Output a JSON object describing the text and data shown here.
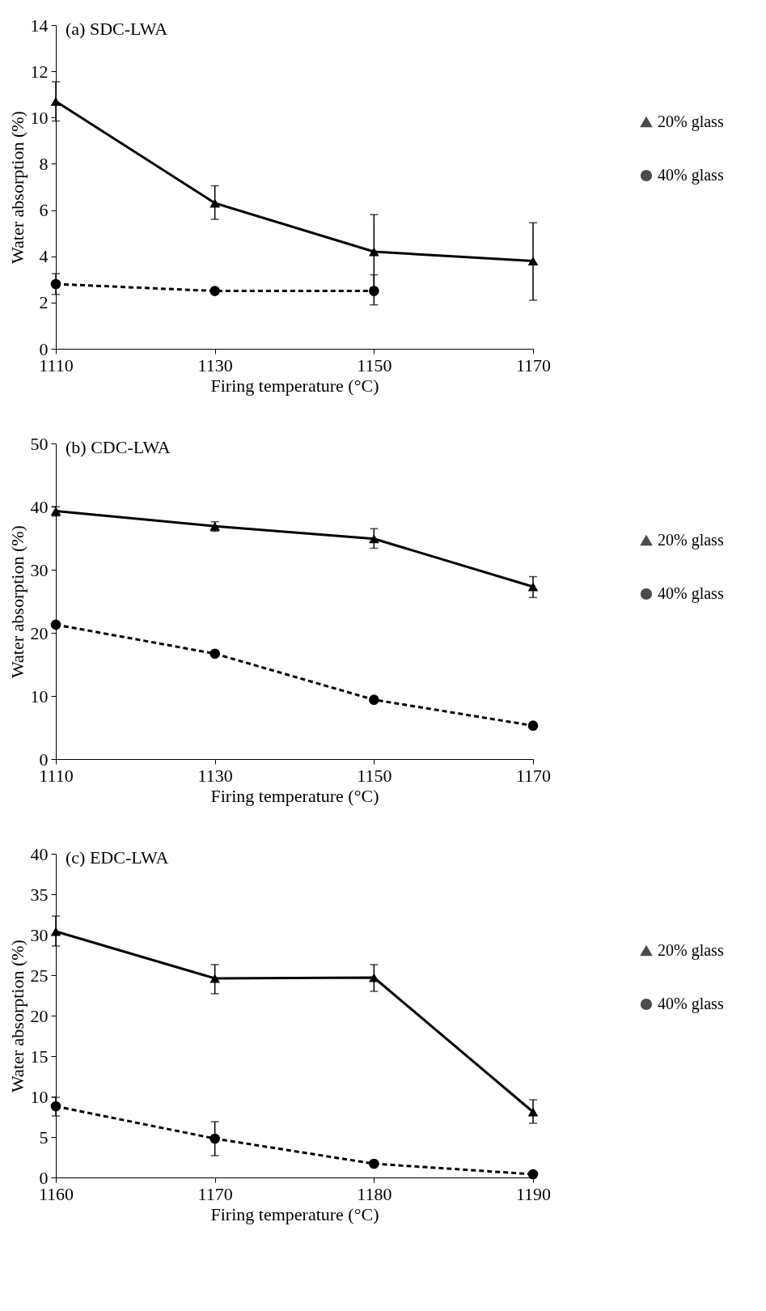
{
  "chart_data": [
    {
      "type": "line",
      "title": "(a) SDC-LWA",
      "xlabel": "Firing temperature (°C)",
      "ylabel": "Water absorption (%)",
      "x": [
        1110,
        1130,
        1150,
        1170
      ],
      "xlim": [
        1110,
        1170
      ],
      "xticks": [
        1110,
        1130,
        1150,
        1170
      ],
      "ylim": [
        0,
        14
      ],
      "yticks": [
        0,
        2,
        4,
        6,
        8,
        10,
        12,
        14
      ],
      "legend": "right",
      "grid": false,
      "series": [
        {
          "name": "20% glass",
          "color": "#000000",
          "marker": "triangle",
          "line_style": "solid",
          "values": [
            10.7,
            6.3,
            4.2,
            3.8
          ],
          "errors": [
            [
              9.85,
              11.55
            ],
            [
              5.6,
              7.05
            ],
            [
              2.65,
              5.8
            ],
            [
              2.1,
              5.45
            ]
          ]
        },
        {
          "name": "40% glass",
          "color": "#000000",
          "marker": "circle",
          "line_style": "dashed",
          "values": [
            2.8,
            2.5,
            2.5,
            null
          ],
          "errors": [
            [
              2.35,
              3.25
            ],
            null,
            [
              1.9,
              3.2
            ],
            null
          ]
        }
      ]
    },
    {
      "type": "line",
      "title": "(b) CDC-LWA",
      "xlabel": "Firing temperature (°C)",
      "ylabel": "Water absorption (%)",
      "x": [
        1110,
        1130,
        1150,
        1170
      ],
      "xlim": [
        1110,
        1170
      ],
      "xticks": [
        1110,
        1130,
        1150,
        1170
      ],
      "ylim": [
        0,
        50
      ],
      "yticks": [
        0,
        10,
        20,
        30,
        40,
        50
      ],
      "legend": "right",
      "grid": false,
      "series": [
        {
          "name": "20% glass",
          "color": "#000000",
          "marker": "triangle",
          "line_style": "solid",
          "values": [
            39.3,
            36.9,
            34.9,
            27.3
          ],
          "errors": [
            [
              38.5,
              40
            ],
            [
              36.1,
              37.6
            ],
            [
              33.4,
              36.5
            ],
            [
              25.6,
              28.9
            ]
          ]
        },
        {
          "name": "40% glass",
          "color": "#000000",
          "marker": "circle",
          "line_style": "dashed",
          "values": [
            21.3,
            16.7,
            9.4,
            5.3
          ]
        }
      ]
    },
    {
      "type": "line",
      "title": "(c) EDC-LWA",
      "xlabel": "Firing temperature (°C)",
      "ylabel": "Water absorption (%)",
      "x": [
        1160,
        1170,
        1180,
        1190
      ],
      "xlim": [
        1160,
        1190
      ],
      "xticks": [
        1160,
        1170,
        1180,
        1190
      ],
      "ylim": [
        0,
        40
      ],
      "yticks": [
        0,
        5,
        10,
        15,
        20,
        25,
        30,
        35,
        40
      ],
      "legend": "right",
      "grid": false,
      "series": [
        {
          "name": "20% glass",
          "color": "#000000",
          "marker": "triangle",
          "line_style": "solid",
          "values": [
            30.4,
            24.6,
            24.7,
            8.1
          ],
          "errors": [
            [
              28.6,
              32.3
            ],
            [
              22.7,
              26.3
            ],
            [
              23,
              26.3
            ],
            [
              6.7,
              9.6
            ]
          ]
        },
        {
          "name": "40% glass",
          "color": "#000000",
          "marker": "circle",
          "line_style": "dashed",
          "values": [
            8.8,
            4.8,
            1.7,
            0.4
          ],
          "errors": [
            [
              7.6,
              9.9
            ],
            [
              2.7,
              6.9
            ],
            null,
            null
          ]
        }
      ]
    }
  ]
}
